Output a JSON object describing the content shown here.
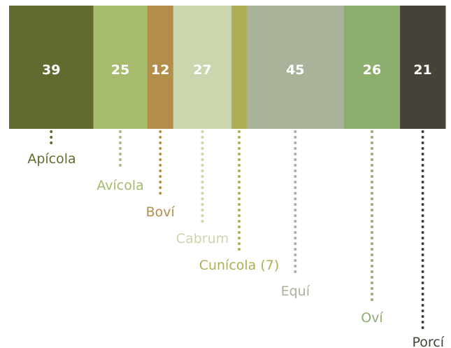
{
  "chart_data": {
    "type": "bar",
    "subtype": "stacked-horizontal-proportion",
    "categories": [
      "Apícola",
      "Avícola",
      "Boví",
      "Cabrum",
      "Cunícola (7)",
      "Equí",
      "Oví",
      "Porcí"
    ],
    "values": [
      39,
      25,
      12,
      27,
      7,
      45,
      26,
      21
    ],
    "value_labels": [
      "39",
      "25",
      "12",
      "27",
      "",
      "45",
      "26",
      "21"
    ],
    "colors": [
      "#636a30",
      "#a6bb6c",
      "#b38e4a",
      "#cbd6ae",
      "#aeae55",
      "#a9b39a",
      "#8eae6e",
      "#45423a"
    ],
    "label_colors": [
      "#636a30",
      "#a6bb6c",
      "#b38e4a",
      "#cbd6ae",
      "#aeae55",
      "#a9b39a",
      "#8eae6e",
      "#45423a"
    ],
    "title": "",
    "xlabel": "",
    "ylabel": "",
    "grid": false,
    "legend": "none"
  }
}
